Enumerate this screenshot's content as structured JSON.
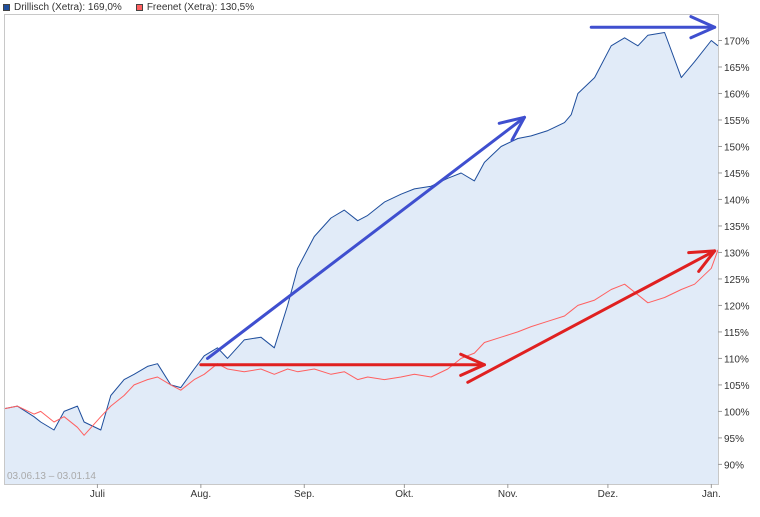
{
  "chart_data": {
    "type": "line",
    "date_range": "03.06.13 – 03.01.14",
    "x_ticks": [
      "Juli",
      "Aug.",
      "Sep.",
      "Okt.",
      "Nov.",
      "Dez.",
      "Jan."
    ],
    "y_ticks": [
      "90%",
      "95%",
      "100%",
      "105%",
      "110%",
      "115%",
      "120%",
      "125%",
      "130%",
      "135%",
      "140%",
      "145%",
      "150%",
      "155%",
      "160%",
      "165%",
      "170%"
    ],
    "ylim": [
      86.3,
      175
    ],
    "x_dates": [
      "2013-06-03",
      "2013-06-07",
      "2013-06-12",
      "2013-06-14",
      "2013-06-18",
      "2013-06-21",
      "2013-06-25",
      "2013-06-27",
      "2013-07-02",
      "2013-07-05",
      "2013-07-09",
      "2013-07-12",
      "2013-07-16",
      "2013-07-19",
      "2013-07-23",
      "2013-07-26",
      "2013-07-30",
      "2013-08-02",
      "2013-08-06",
      "2013-08-09",
      "2013-08-14",
      "2013-08-19",
      "2013-08-23",
      "2013-08-27",
      "2013-08-30",
      "2013-09-04",
      "2013-09-09",
      "2013-09-13",
      "2013-09-17",
      "2013-09-20",
      "2013-09-25",
      "2013-09-30",
      "2013-10-04",
      "2013-10-09",
      "2013-10-14",
      "2013-10-18",
      "2013-10-22",
      "2013-10-25",
      "2013-10-30",
      "2013-11-04",
      "2013-11-08",
      "2013-11-13",
      "2013-11-18",
      "2013-11-20",
      "2013-11-22",
      "2013-11-27",
      "2013-12-02",
      "2013-12-06",
      "2013-12-10",
      "2013-12-13",
      "2013-12-18",
      "2013-12-23",
      "2013-12-27",
      "2014-01-01",
      "2014-01-03"
    ],
    "series": [
      {
        "name": "Drillisch (Xetra): 169,0%",
        "color": "#1f4e9c",
        "fill": "#e1ebf8",
        "values": [
          100.5,
          101,
          99,
          98,
          96.5,
          100,
          101,
          98,
          96.5,
          103,
          106,
          107,
          108.5,
          109,
          105,
          104.5,
          108,
          110.5,
          112,
          110,
          113.5,
          114,
          112,
          120,
          127,
          133,
          136.5,
          138,
          136,
          137,
          139.5,
          141,
          142,
          142.5,
          144,
          145,
          143.5,
          147,
          150,
          151.5,
          152,
          153,
          154.5,
          156,
          160,
          163,
          169,
          170.5,
          169,
          171,
          171.5,
          163,
          166,
          170,
          169
        ]
      },
      {
        "name": "Freenet (Xetra): 130,5%",
        "color": "#ff6060",
        "fill": "none",
        "values": [
          100.5,
          101,
          99.5,
          100,
          98,
          99,
          97,
          95.5,
          99,
          101,
          103,
          105,
          106,
          106.5,
          105,
          104,
          106,
          107,
          109,
          108,
          107.5,
          108,
          107,
          108,
          107.5,
          108,
          107,
          107.5,
          106,
          106.5,
          106,
          106.5,
          107,
          106.5,
          108,
          110,
          111,
          113,
          114,
          115,
          116,
          117,
          118,
          119,
          120,
          121,
          123,
          124,
          122,
          120.5,
          121.5,
          123,
          124,
          127,
          130.5
        ]
      }
    ],
    "annotations": [
      {
        "type": "arrow",
        "color": "#3f4fcf",
        "from": [
          "2013-08-03",
          110
        ],
        "to": [
          "2013-11-06",
          155.5
        ]
      },
      {
        "type": "arrow",
        "color": "#3f4fcf",
        "from": [
          "2013-11-26",
          172.5
        ],
        "to": [
          "2014-01-02",
          172.5
        ]
      },
      {
        "type": "arrow",
        "color": "#e02020",
        "from": [
          "2013-08-01",
          108.8
        ],
        "to": [
          "2013-10-25",
          108.8
        ]
      },
      {
        "type": "arrow",
        "color": "#e02020",
        "from": [
          "2013-10-20",
          105.5
        ],
        "to": [
          "2014-01-02",
          130.3
        ]
      }
    ],
    "grid": false,
    "legend_position": "top-left"
  }
}
